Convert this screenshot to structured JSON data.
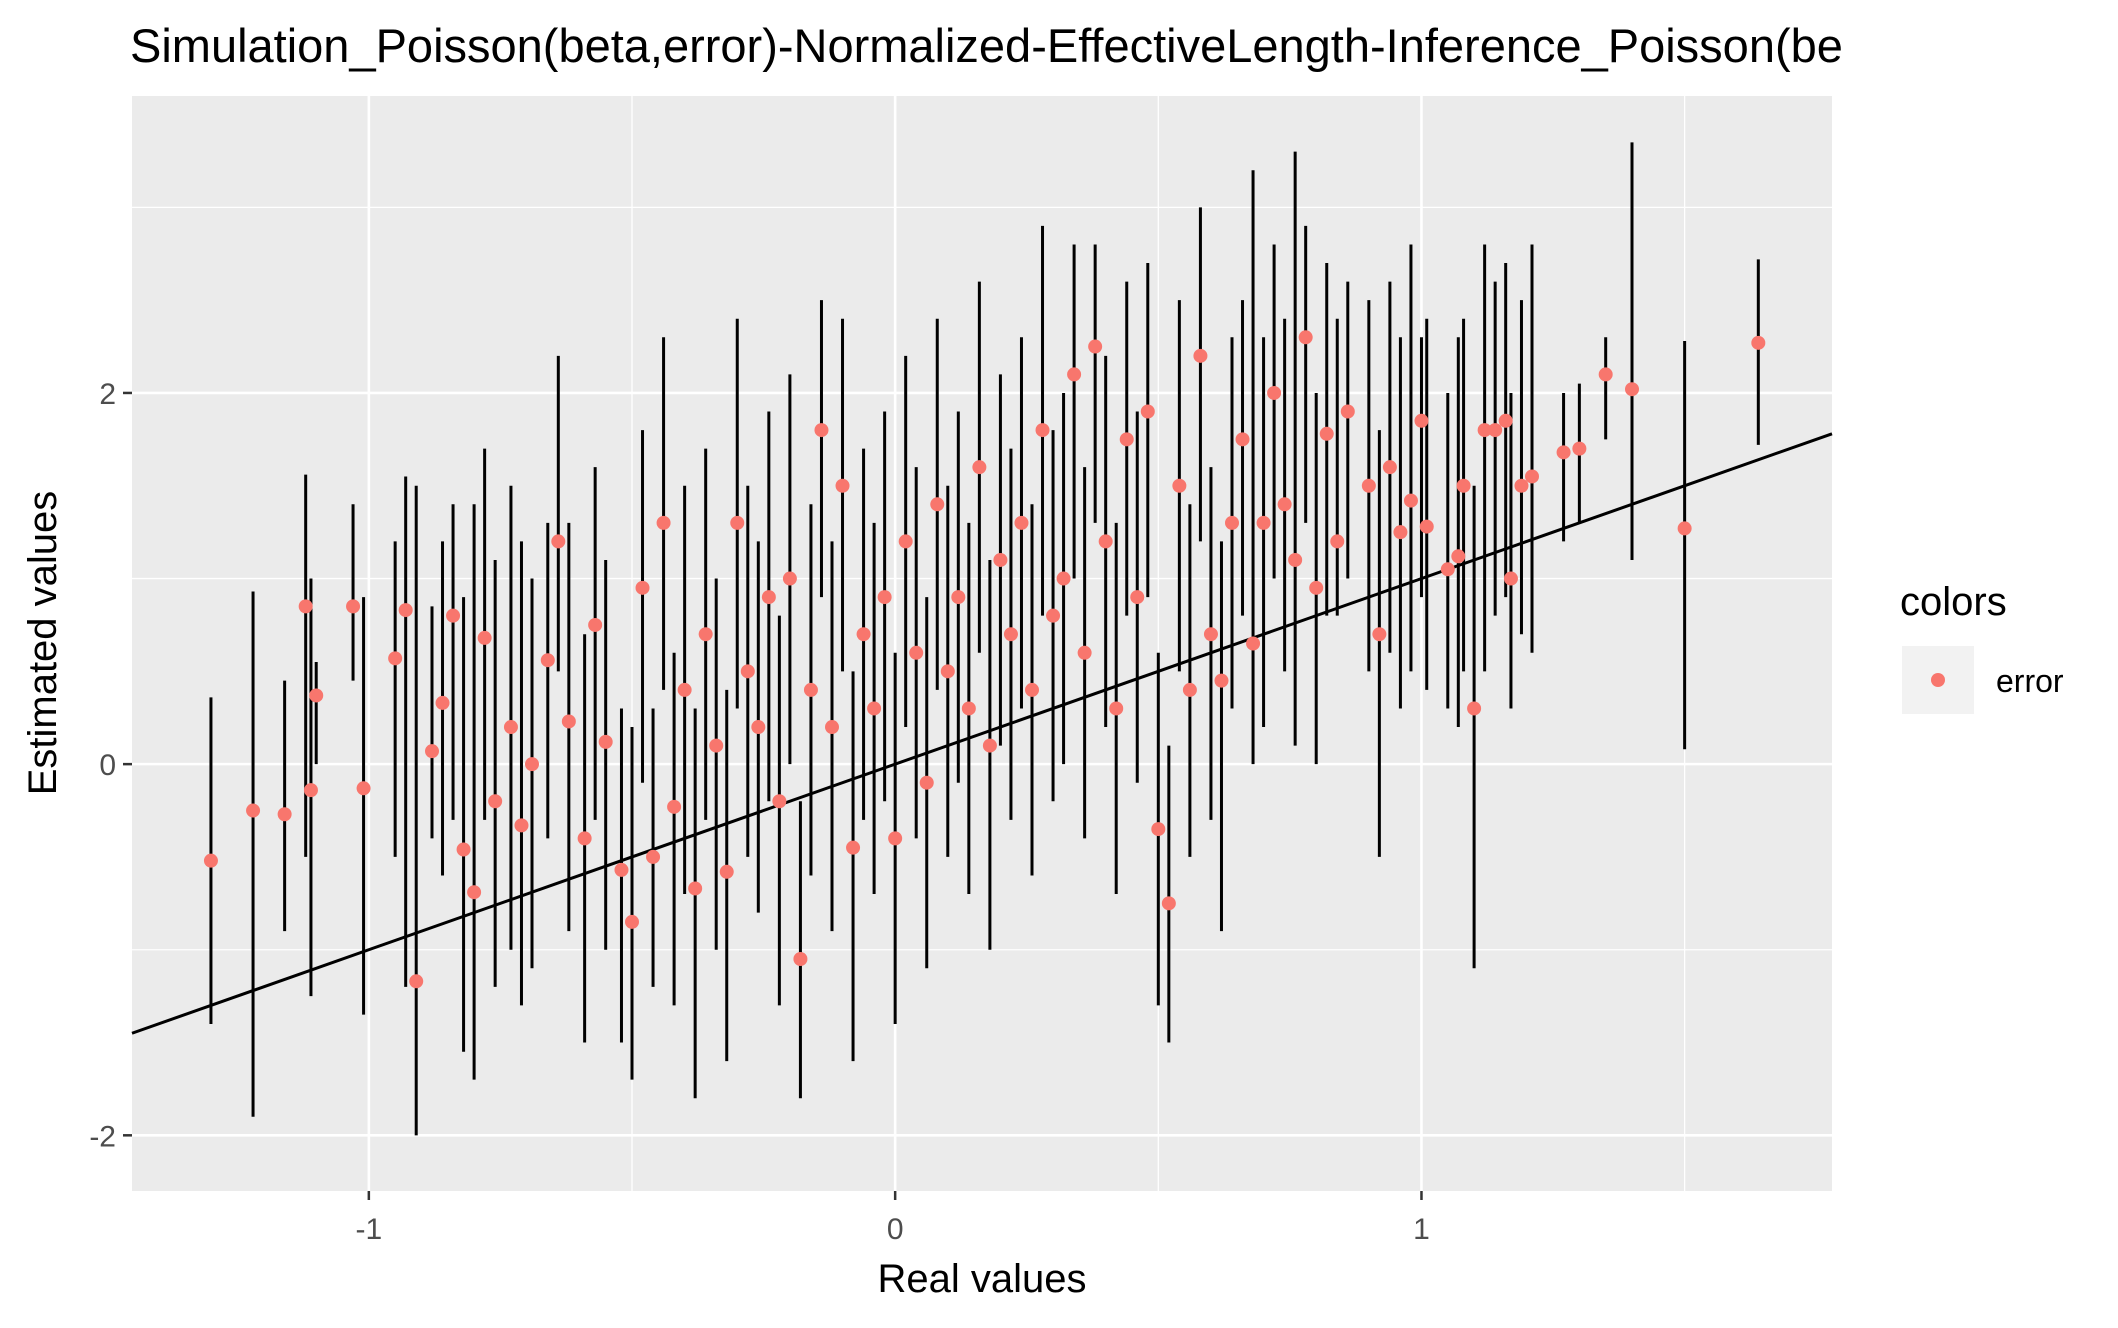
{
  "colors": {
    "panel_bg": "#EBEBEB",
    "grid": "#FFFFFF",
    "point": "#F8766D",
    "errorbar": "#000000",
    "reference_line": "#000000",
    "tick_text": "#4D4D4D"
  },
  "chart_data": {
    "type": "scatter",
    "title": "Simulation_Poisson(beta,error)-Normalized-EffectiveLength-Inference_Poisson(be",
    "xlabel": "Real values",
    "ylabel": "Estimated values",
    "xlim": [
      -1.45,
      1.78
    ],
    "ylim": [
      -2.3,
      3.6
    ],
    "x_ticks": [
      -1,
      0,
      1
    ],
    "x_tick_labels": [
      "-1",
      "0",
      "1"
    ],
    "y_ticks": [
      -2,
      0,
      2
    ],
    "y_tick_labels": [
      "-2",
      "0",
      "2"
    ],
    "x_minor_ticks": [
      -0.5,
      0.5,
      1.5
    ],
    "y_minor_ticks": [
      -1,
      1,
      3
    ],
    "grid": true,
    "legend": {
      "title": "colors",
      "position": "right",
      "entries": [
        {
          "label": "error",
          "color": "#F8766D",
          "marker": "circle"
        }
      ]
    },
    "reference_line": {
      "slope": 1,
      "intercept": 0,
      "description": "y = x"
    },
    "series": [
      {
        "name": "error",
        "marker": "point",
        "errorbar": "vertical interval",
        "points": [
          {
            "x": -1.3,
            "y": -0.52,
            "lo": -1.4,
            "hi": 0.36
          },
          {
            "x": -1.22,
            "y": -0.25,
            "lo": -1.9,
            "hi": 0.93
          },
          {
            "x": -1.16,
            "y": -0.27,
            "lo": -0.9,
            "hi": 0.45
          },
          {
            "x": -1.12,
            "y": 0.85,
            "lo": -0.5,
            "hi": 1.56
          },
          {
            "x": -1.11,
            "y": -0.14,
            "lo": -1.25,
            "hi": 1.0
          },
          {
            "x": -1.1,
            "y": 0.37,
            "lo": 0.0,
            "hi": 0.55
          },
          {
            "x": -1.03,
            "y": 0.85,
            "lo": 0.45,
            "hi": 1.4
          },
          {
            "x": -1.01,
            "y": -0.13,
            "lo": -1.35,
            "hi": 0.9
          },
          {
            "x": -0.95,
            "y": 0.57,
            "lo": -0.5,
            "hi": 1.2
          },
          {
            "x": -0.93,
            "y": 0.83,
            "lo": -1.2,
            "hi": 1.55
          },
          {
            "x": -0.91,
            "y": -1.17,
            "lo": -2.0,
            "hi": 1.5
          },
          {
            "x": -0.88,
            "y": 0.07,
            "lo": -0.4,
            "hi": 0.85
          },
          {
            "x": -0.86,
            "y": 0.33,
            "lo": -0.6,
            "hi": 1.2
          },
          {
            "x": -0.84,
            "y": 0.8,
            "lo": -0.3,
            "hi": 1.4
          },
          {
            "x": -0.82,
            "y": -0.46,
            "lo": -1.55,
            "hi": 0.9
          },
          {
            "x": -0.8,
            "y": -0.69,
            "lo": -1.7,
            "hi": 1.4
          },
          {
            "x": -0.78,
            "y": 0.68,
            "lo": -0.3,
            "hi": 1.7
          },
          {
            "x": -0.76,
            "y": -0.2,
            "lo": -1.2,
            "hi": 1.1
          },
          {
            "x": -0.73,
            "y": 0.2,
            "lo": -1.0,
            "hi": 1.5
          },
          {
            "x": -0.71,
            "y": -0.33,
            "lo": -1.3,
            "hi": 1.2
          },
          {
            "x": -0.69,
            "y": 0.0,
            "lo": -1.1,
            "hi": 1.0
          },
          {
            "x": -0.66,
            "y": 0.56,
            "lo": -0.4,
            "hi": 1.3
          },
          {
            "x": -0.64,
            "y": 1.2,
            "lo": 0.5,
            "hi": 2.2
          },
          {
            "x": -0.62,
            "y": 0.23,
            "lo": -0.9,
            "hi": 1.3
          },
          {
            "x": -0.59,
            "y": -0.4,
            "lo": -1.5,
            "hi": 0.7
          },
          {
            "x": -0.57,
            "y": 0.75,
            "lo": -0.3,
            "hi": 1.6
          },
          {
            "x": -0.55,
            "y": 0.12,
            "lo": -1.0,
            "hi": 1.1
          },
          {
            "x": -0.52,
            "y": -0.57,
            "lo": -1.5,
            "hi": 0.3
          },
          {
            "x": -0.5,
            "y": -0.85,
            "lo": -1.7,
            "hi": 0.2
          },
          {
            "x": -0.48,
            "y": 0.95,
            "lo": -0.1,
            "hi": 1.8
          },
          {
            "x": -0.46,
            "y": -0.5,
            "lo": -1.2,
            "hi": 0.3
          },
          {
            "x": -0.44,
            "y": 1.3,
            "lo": 0.4,
            "hi": 2.3
          },
          {
            "x": -0.42,
            "y": -0.23,
            "lo": -1.3,
            "hi": 0.6
          },
          {
            "x": -0.4,
            "y": 0.4,
            "lo": -0.7,
            "hi": 1.5
          },
          {
            "x": -0.38,
            "y": -0.67,
            "lo": -1.8,
            "hi": 0.3
          },
          {
            "x": -0.36,
            "y": 0.7,
            "lo": -0.3,
            "hi": 1.7
          },
          {
            "x": -0.34,
            "y": 0.1,
            "lo": -1.0,
            "hi": 1.0
          },
          {
            "x": -0.32,
            "y": -0.58,
            "lo": -1.6,
            "hi": 0.4
          },
          {
            "x": -0.3,
            "y": 1.3,
            "lo": 0.3,
            "hi": 2.4
          },
          {
            "x": -0.28,
            "y": 0.5,
            "lo": -0.5,
            "hi": 1.5
          },
          {
            "x": -0.26,
            "y": 0.2,
            "lo": -0.8,
            "hi": 1.2
          },
          {
            "x": -0.24,
            "y": 0.9,
            "lo": -0.2,
            "hi": 1.9
          },
          {
            "x": -0.22,
            "y": -0.2,
            "lo": -1.3,
            "hi": 0.8
          },
          {
            "x": -0.2,
            "y": 1.0,
            "lo": 0.0,
            "hi": 2.1
          },
          {
            "x": -0.18,
            "y": -1.05,
            "lo": -1.8,
            "hi": -0.2
          },
          {
            "x": -0.16,
            "y": 0.4,
            "lo": -0.6,
            "hi": 1.4
          },
          {
            "x": -0.14,
            "y": 1.8,
            "lo": 0.9,
            "hi": 2.5
          },
          {
            "x": -0.12,
            "y": 0.2,
            "lo": -0.9,
            "hi": 1.2
          },
          {
            "x": -0.1,
            "y": 1.5,
            "lo": 0.5,
            "hi": 2.4
          },
          {
            "x": -0.08,
            "y": -0.45,
            "lo": -1.6,
            "hi": 0.5
          },
          {
            "x": -0.06,
            "y": 0.7,
            "lo": -0.3,
            "hi": 1.7
          },
          {
            "x": -0.04,
            "y": 0.3,
            "lo": -0.7,
            "hi": 1.3
          },
          {
            "x": -0.02,
            "y": 0.9,
            "lo": -0.2,
            "hi": 1.9
          },
          {
            "x": 0.0,
            "y": -0.4,
            "lo": -1.4,
            "hi": 0.6
          },
          {
            "x": 0.02,
            "y": 1.2,
            "lo": 0.2,
            "hi": 2.2
          },
          {
            "x": 0.04,
            "y": 0.6,
            "lo": -0.4,
            "hi": 1.6
          },
          {
            "x": 0.06,
            "y": -0.1,
            "lo": -1.1,
            "hi": 0.9
          },
          {
            "x": 0.08,
            "y": 1.4,
            "lo": 0.4,
            "hi": 2.4
          },
          {
            "x": 0.1,
            "y": 0.5,
            "lo": -0.5,
            "hi": 1.5
          },
          {
            "x": 0.12,
            "y": 0.9,
            "lo": -0.1,
            "hi": 1.9
          },
          {
            "x": 0.14,
            "y": 0.3,
            "lo": -0.7,
            "hi": 1.3
          },
          {
            "x": 0.16,
            "y": 1.6,
            "lo": 0.6,
            "hi": 2.6
          },
          {
            "x": 0.18,
            "y": 0.1,
            "lo": -1.0,
            "hi": 1.1
          },
          {
            "x": 0.2,
            "y": 1.1,
            "lo": 0.1,
            "hi": 2.1
          },
          {
            "x": 0.22,
            "y": 0.7,
            "lo": -0.3,
            "hi": 1.7
          },
          {
            "x": 0.24,
            "y": 1.3,
            "lo": 0.3,
            "hi": 2.3
          },
          {
            "x": 0.26,
            "y": 0.4,
            "lo": -0.6,
            "hi": 1.4
          },
          {
            "x": 0.28,
            "y": 1.8,
            "lo": 0.8,
            "hi": 2.9
          },
          {
            "x": 0.3,
            "y": 0.8,
            "lo": -0.2,
            "hi": 1.8
          },
          {
            "x": 0.32,
            "y": 1.0,
            "lo": 0.0,
            "hi": 2.0
          },
          {
            "x": 0.34,
            "y": 2.1,
            "lo": 1.0,
            "hi": 2.8
          },
          {
            "x": 0.36,
            "y": 0.6,
            "lo": -0.4,
            "hi": 1.6
          },
          {
            "x": 0.38,
            "y": 2.25,
            "lo": 1.3,
            "hi": 2.8
          },
          {
            "x": 0.4,
            "y": 1.2,
            "lo": 0.2,
            "hi": 2.2
          },
          {
            "x": 0.42,
            "y": 0.3,
            "lo": -0.7,
            "hi": 1.3
          },
          {
            "x": 0.44,
            "y": 1.75,
            "lo": 0.8,
            "hi": 2.6
          },
          {
            "x": 0.46,
            "y": 0.9,
            "lo": -0.1,
            "hi": 1.9
          },
          {
            "x": 0.48,
            "y": 1.9,
            "lo": 0.9,
            "hi": 2.7
          },
          {
            "x": 0.5,
            "y": -0.35,
            "lo": -1.3,
            "hi": 0.6
          },
          {
            "x": 0.52,
            "y": -0.75,
            "lo": -1.5,
            "hi": 0.1
          },
          {
            "x": 0.54,
            "y": 1.5,
            "lo": 0.5,
            "hi": 2.5
          },
          {
            "x": 0.56,
            "y": 0.4,
            "lo": -0.5,
            "hi": 1.4
          },
          {
            "x": 0.58,
            "y": 2.2,
            "lo": 1.2,
            "hi": 3.0
          },
          {
            "x": 0.6,
            "y": 0.7,
            "lo": -0.3,
            "hi": 1.6
          },
          {
            "x": 0.62,
            "y": 0.45,
            "lo": -0.9,
            "hi": 1.2
          },
          {
            "x": 0.64,
            "y": 1.3,
            "lo": 0.3,
            "hi": 2.3
          },
          {
            "x": 0.66,
            "y": 1.75,
            "lo": 0.8,
            "hi": 2.5
          },
          {
            "x": 0.68,
            "y": 0.65,
            "lo": 0.0,
            "hi": 3.2
          },
          {
            "x": 0.7,
            "y": 1.3,
            "lo": 0.2,
            "hi": 2.3
          },
          {
            "x": 0.72,
            "y": 2.0,
            "lo": 1.0,
            "hi": 2.8
          },
          {
            "x": 0.74,
            "y": 1.4,
            "lo": 0.5,
            "hi": 2.4
          },
          {
            "x": 0.76,
            "y": 1.1,
            "lo": 0.1,
            "hi": 3.3
          },
          {
            "x": 0.78,
            "y": 2.3,
            "lo": 1.3,
            "hi": 2.9
          },
          {
            "x": 0.8,
            "y": 0.95,
            "lo": 0.0,
            "hi": 2.0
          },
          {
            "x": 0.82,
            "y": 1.78,
            "lo": 0.8,
            "hi": 2.7
          },
          {
            "x": 0.84,
            "y": 1.2,
            "lo": 0.8,
            "hi": 2.4
          },
          {
            "x": 0.86,
            "y": 1.9,
            "lo": 1.0,
            "hi": 2.6
          },
          {
            "x": 0.9,
            "y": 1.5,
            "lo": 0.5,
            "hi": 2.5
          },
          {
            "x": 0.92,
            "y": 0.7,
            "lo": -0.5,
            "hi": 1.8
          },
          {
            "x": 0.94,
            "y": 1.6,
            "lo": 0.6,
            "hi": 2.6
          },
          {
            "x": 0.96,
            "y": 1.25,
            "lo": 0.3,
            "hi": 2.3
          },
          {
            "x": 0.98,
            "y": 1.42,
            "lo": 0.5,
            "hi": 2.8
          },
          {
            "x": 1.0,
            "y": 1.85,
            "lo": 0.9,
            "hi": 2.3
          },
          {
            "x": 1.01,
            "y": 1.28,
            "lo": 0.4,
            "hi": 2.4
          },
          {
            "x": 1.05,
            "y": 1.05,
            "lo": 0.3,
            "hi": 2.0
          },
          {
            "x": 1.07,
            "y": 1.12,
            "lo": 0.2,
            "hi": 2.3
          },
          {
            "x": 1.08,
            "y": 1.5,
            "lo": 0.5,
            "hi": 2.4
          },
          {
            "x": 1.1,
            "y": 0.3,
            "lo": -1.1,
            "hi": 1.5
          },
          {
            "x": 1.12,
            "y": 1.8,
            "lo": 0.5,
            "hi": 2.8
          },
          {
            "x": 1.14,
            "y": 1.8,
            "lo": 0.8,
            "hi": 2.6
          },
          {
            "x": 1.16,
            "y": 1.85,
            "lo": 0.9,
            "hi": 2.7
          },
          {
            "x": 1.17,
            "y": 1.0,
            "lo": 0.3,
            "hi": 2.0
          },
          {
            "x": 1.19,
            "y": 1.5,
            "lo": 0.7,
            "hi": 2.5
          },
          {
            "x": 1.21,
            "y": 1.55,
            "lo": 0.6,
            "hi": 2.8
          },
          {
            "x": 1.27,
            "y": 1.68,
            "lo": 1.2,
            "hi": 2.0
          },
          {
            "x": 1.3,
            "y": 1.7,
            "lo": 1.3,
            "hi": 2.05
          },
          {
            "x": 1.35,
            "y": 2.1,
            "lo": 1.75,
            "hi": 2.3
          },
          {
            "x": 1.4,
            "y": 2.02,
            "lo": 1.1,
            "hi": 3.35
          },
          {
            "x": 1.5,
            "y": 1.27,
            "lo": 0.08,
            "hi": 2.28
          },
          {
            "x": 1.64,
            "y": 2.27,
            "lo": 1.72,
            "hi": 2.72
          }
        ]
      }
    ]
  }
}
